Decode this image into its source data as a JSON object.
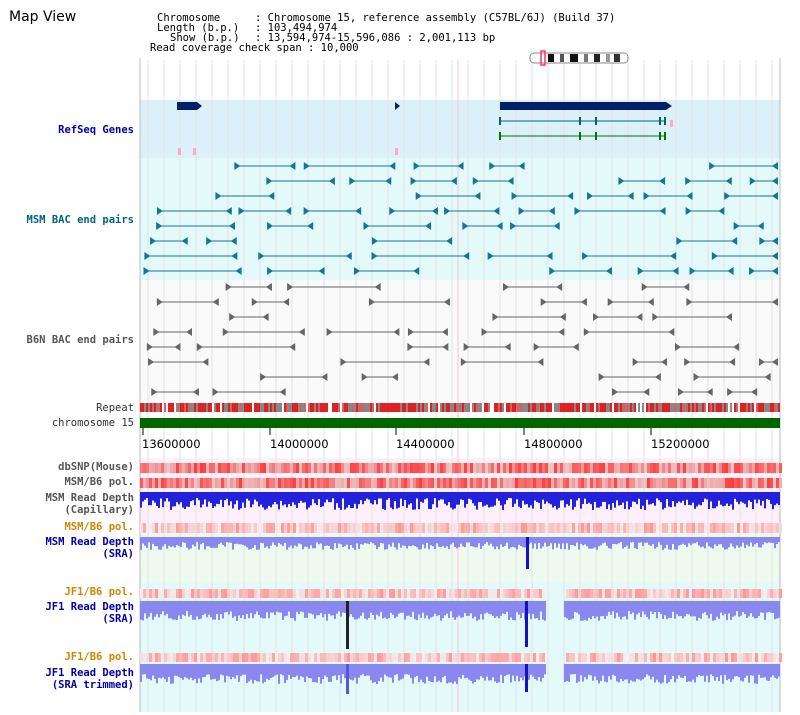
{
  "title": "Map View",
  "info": {
    "chromosome_key": "Chromosome",
    "chromosome_value": ": Chromosome 15, reference assembly (C57BL/6J) (Build 37)",
    "length_key": "Length (b.p.)",
    "length_value": ": 103,494,974",
    "show_key": "Show (b.p.)",
    "show_value": ": 13,594,974-15,596,086 : 2,001,113 bp",
    "span_text": "Read coverage check span : 10,000"
  },
  "tracks": {
    "refseq": "RefSeq Genes",
    "msm_bac": "MSM BAC end pairs",
    "b6n_bac": "B6N BAC end pairs",
    "repeat": "Repeat",
    "chromosome": "chromosome 15",
    "dbsnp": "dbSNP(Mouse)",
    "msm_b6_pol_1": "MSM/B6 pol.",
    "msm_depth_cap_1": "MSM Read Depth",
    "msm_depth_cap_2": "(Capillary)",
    "msm_b6_pol_2": "MSM/B6 pol.",
    "msm_depth_sra_1": "MSM Read Depth",
    "msm_depth_sra_2": "(SRA)",
    "jf1_b6_pol_1": "JF1/B6 pol.",
    "jf1_depth_sra_1": "JF1 Read Depth",
    "jf1_depth_sra_2": "(SRA)",
    "jf1_b6_pol_2": "JF1/B6 pol.",
    "jf1_depth_trim_1": "JF1 Read Depth",
    "jf1_depth_trim_2": "(SRA trimmed)"
  },
  "axis": {
    "ticks": [
      "13600000",
      "14000000",
      "14400000",
      "14800000",
      "15200000"
    ],
    "start_bp": 13594974,
    "end_bp": 15596086
  },
  "colors": {
    "refseq_bg": "#dcf0fa",
    "msm_bg": "#e4fafa",
    "b6n_bg": "#fafafa",
    "chromosome_bar": "#006600",
    "capillary_depth": "#2222dd",
    "sra_depth": "#8888ee",
    "label_blue": "#0000aa",
    "label_teal": "#006677",
    "label_orange": "#cc8800"
  }
}
